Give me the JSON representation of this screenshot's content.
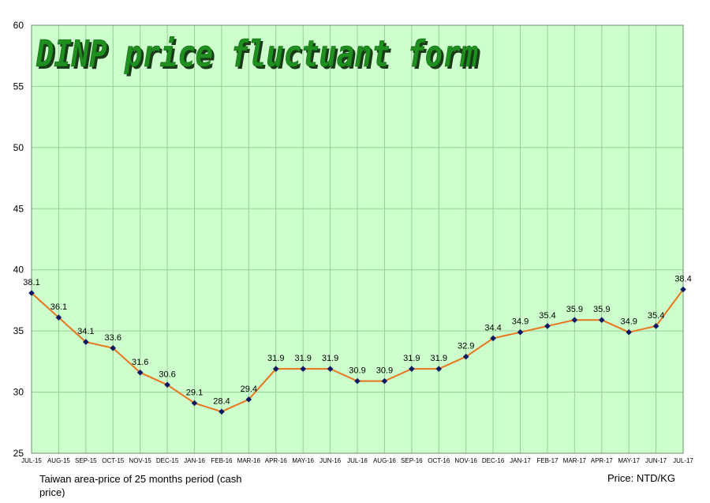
{
  "chart_data": {
    "type": "line",
    "title": "DINP price fluctuant form",
    "categories": [
      "JUL-15",
      "AUG-15",
      "SEP-15",
      "OCT-15",
      "NOV-15",
      "DEC-15",
      "JAN-16",
      "FEB-16",
      "MAR-16",
      "APR-16",
      "MAY-16",
      "JUN-16",
      "JUL-16",
      "AUG-16",
      "SEP-16",
      "OCT-16",
      "NOV-16",
      "DEC-16",
      "JAN-17",
      "FEB-17",
      "MAR-17",
      "APR-17",
      "MAY-17",
      "JUN-17",
      "JUL-17"
    ],
    "values": [
      38.1,
      36.1,
      34.1,
      33.6,
      31.6,
      30.6,
      29.1,
      28.4,
      29.4,
      31.9,
      31.9,
      31.9,
      30.9,
      30.9,
      31.9,
      31.9,
      32.9,
      34.4,
      34.9,
      35.4,
      35.9,
      35.9,
      34.9,
      35.4,
      38.4
    ],
    "ylim": [
      25,
      60
    ],
    "yticks": [
      25,
      30,
      35,
      40,
      45,
      50,
      55,
      60
    ],
    "grid": true,
    "colors": {
      "plot_background": "#ccffcc",
      "grid": "#99cc99",
      "line": "#e8741c",
      "marker": "#0d1a63",
      "title": "#1f8f1f"
    }
  },
  "footer": {
    "note": "Taiwan area-price of 25 months period (cash price)",
    "unit": "Price: NTD/KG"
  }
}
